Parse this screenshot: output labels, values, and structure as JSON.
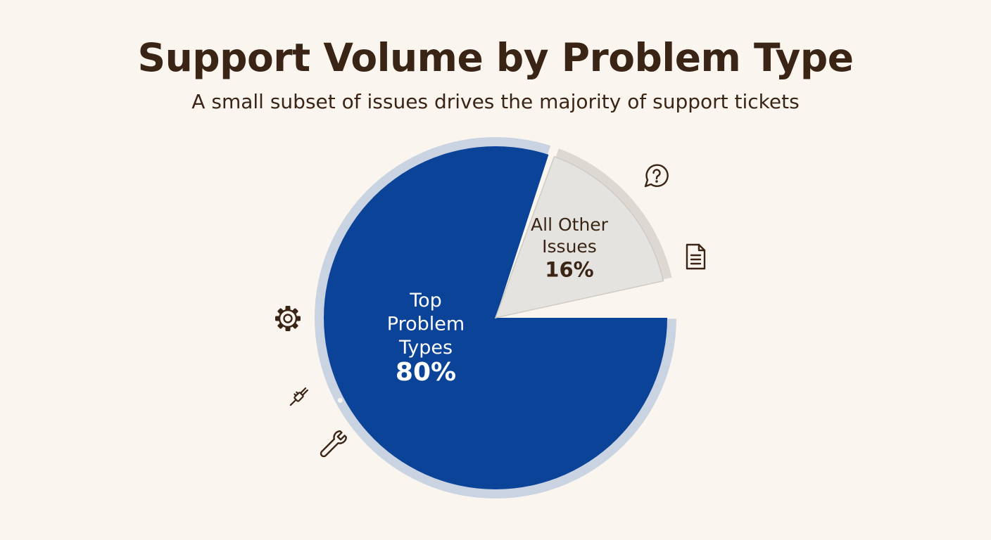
{
  "title": "Support Volume by Problem Type",
  "subtitle": "A small subset of issues drives the majority of support tickets",
  "colors": {
    "background": "#faf6ef",
    "title": "#3a2415",
    "top_problem": "#0a4398",
    "top_problem_ring": "#c9d3e2",
    "other": "#e5e3df",
    "other_ring": "#ddd9d2",
    "icon": "#3a2415"
  },
  "icons": [
    "question-bubble-icon",
    "document-icon",
    "gear-icon",
    "plug-icon",
    "wrench-icon"
  ],
  "chart_data": {
    "type": "pie",
    "title": "Support Volume by Problem Type",
    "subtitle": "A small subset of issues drives the majority of support tickets",
    "slices": [
      {
        "label": "Top Problem Types",
        "label_lines": [
          "Top",
          "Problem",
          "Types"
        ],
        "value": 80,
        "value_label": "80%",
        "color": "#0a4398"
      },
      {
        "label": "All Other Issues",
        "label_lines": [
          "All Other",
          "Issues"
        ],
        "value": 16,
        "value_label": "16%",
        "color": "#e5e3df"
      }
    ],
    "legend": "none"
  }
}
